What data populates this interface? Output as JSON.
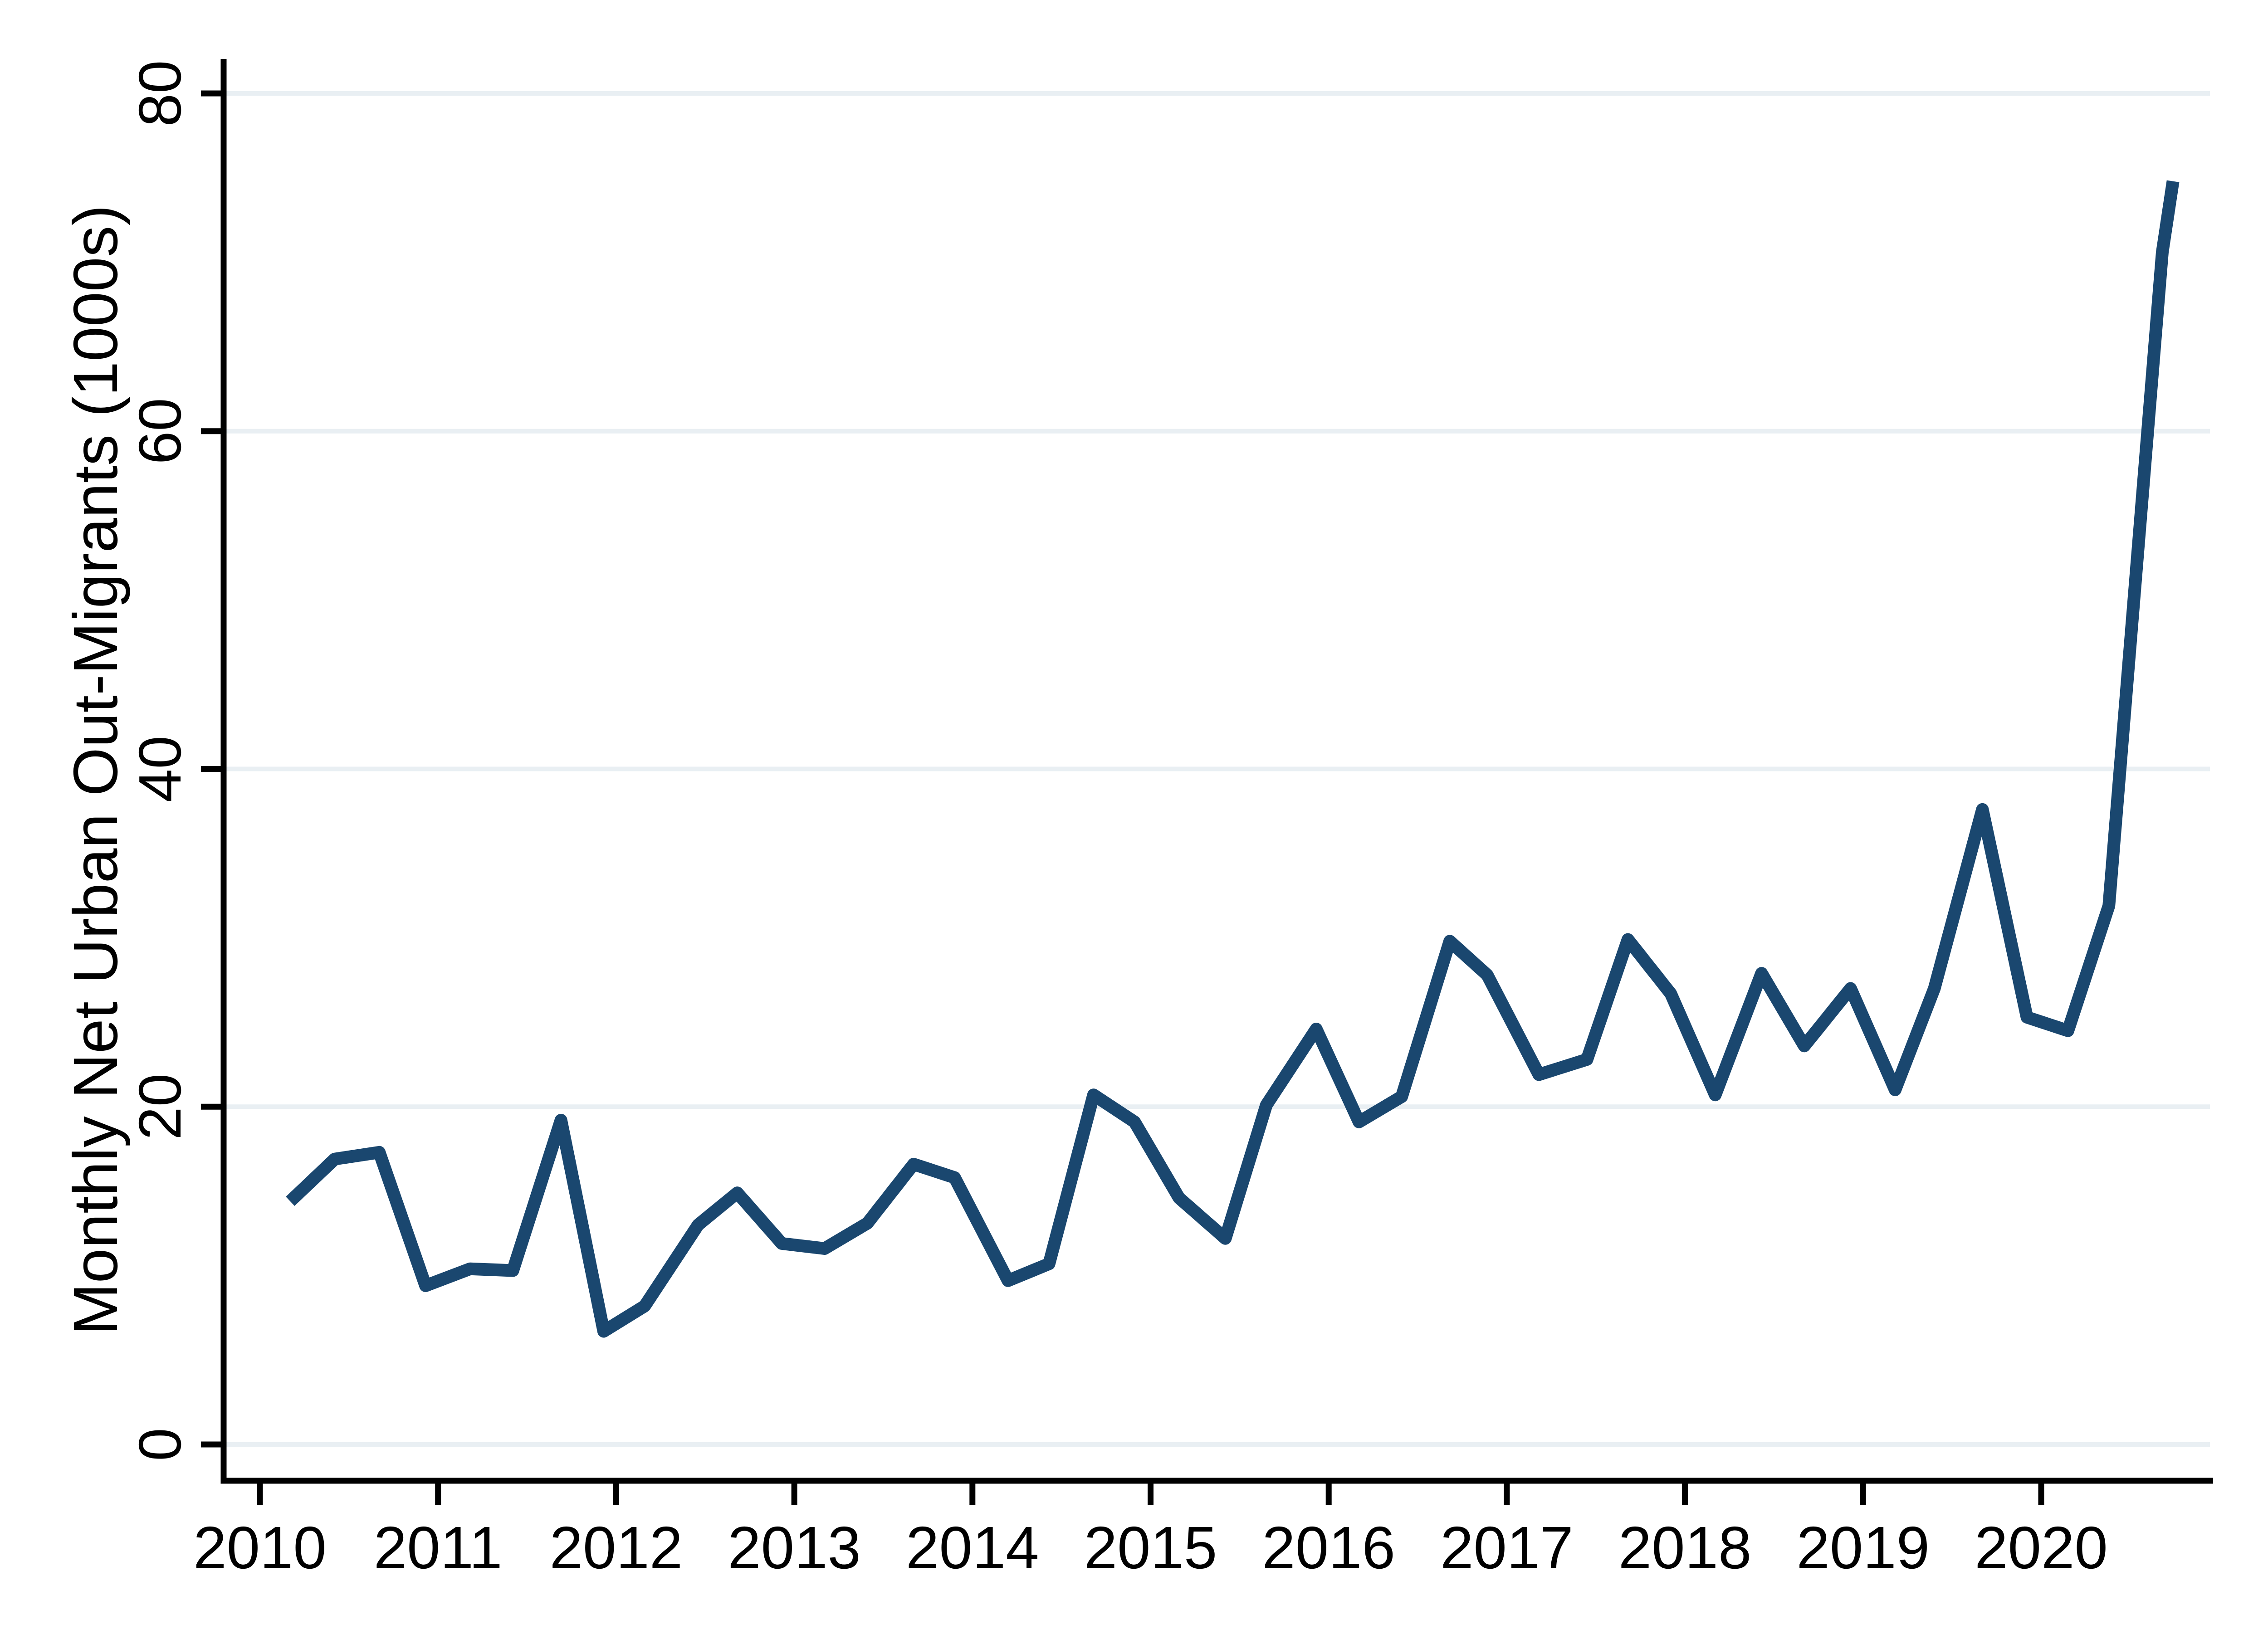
{
  "chart_data": {
    "type": "line",
    "title": "",
    "ylabel": "Monthly Net Urban Out-Migrants (1000s)",
    "xlabel": "",
    "ylim": [
      0,
      80
    ],
    "xlim": [
      2009.8,
      2020.97
    ],
    "yticks": [
      0,
      20,
      40,
      60,
      80
    ],
    "ytick_labels": [
      "0",
      "20",
      "40",
      "60",
      "80"
    ],
    "xticks": [
      2010,
      2011,
      2012,
      2013,
      2014,
      2015,
      2016,
      2017,
      2018,
      2019,
      2020
    ],
    "xtick_labels": [
      "2010",
      "2011",
      "2012",
      "2013",
      "2014",
      "2015",
      "2016",
      "2017",
      "2018",
      "2019",
      "2020"
    ],
    "grid": "horizontal gridlines at y ticks",
    "legend": "none",
    "colors": {
      "line": "#1a476f",
      "grid": "#e9eff3",
      "axis": "#000000",
      "background": "#ffffff"
    },
    "series": [
      {
        "name": "Monthly net urban out-migrants (1000s)",
        "x": [
          2010.17,
          2010.42,
          2010.67,
          2010.93,
          2011.18,
          2011.42,
          2011.69,
          2011.93,
          2012.16,
          2012.46,
          2012.68,
          2012.93,
          2013.17,
          2013.41,
          2013.67,
          2013.9,
          2014.2,
          2014.43,
          2014.68,
          2014.91,
          2015.16,
          2015.42,
          2015.65,
          2015.93,
          2016.17,
          2016.41,
          2016.68,
          2016.89,
          2017.18,
          2017.45,
          2017.68,
          2017.92,
          2018.17,
          2018.43,
          2018.67,
          2018.93,
          2019.18,
          2019.4,
          2019.67,
          2019.92,
          2020.15,
          2020.38,
          2020.68,
          2020.74
        ],
        "y": [
          14.4,
          16.9,
          17.3,
          9.4,
          10.4,
          10.3,
          19.2,
          6.7,
          8.2,
          13.0,
          14.9,
          11.9,
          11.6,
          13.1,
          16.6,
          15.8,
          9.7,
          10.7,
          20.7,
          19.1,
          14.6,
          12.2,
          20.1,
          24.6,
          19.1,
          20.6,
          29.8,
          27.8,
          21.9,
          22.8,
          29.9,
          26.7,
          20.7,
          27.9,
          23.6,
          27.0,
          21.0,
          27.0,
          37.6,
          25.3,
          24.5,
          31.9,
          70.6,
          74.8
        ]
      }
    ]
  }
}
